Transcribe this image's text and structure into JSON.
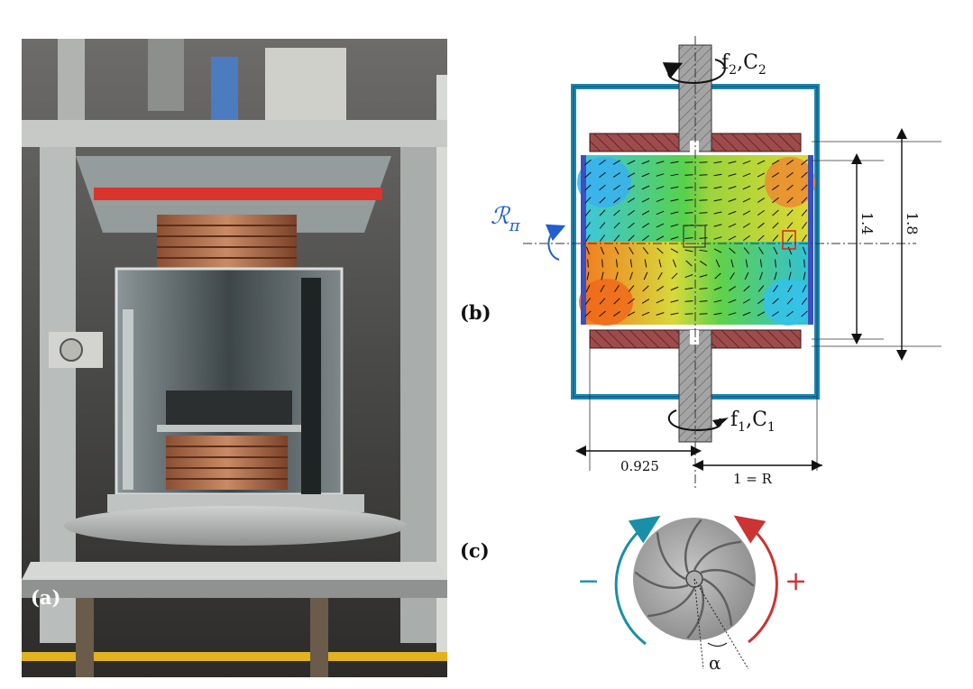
{
  "panels": {
    "a": "(a)",
    "b": "(b)",
    "c": "(c)"
  },
  "diagram_b": {
    "top_rotation": "f",
    "top_rotation_sub": "2",
    "top_rotation_mid": ",C",
    "top_rotation_sub2": "2",
    "bottom_rotation": "f",
    "bottom_rotation_sub": "1",
    "bottom_rotation_mid": ",C",
    "bottom_rotation_sub2": "1",
    "symmetry_symbol": "ℛ",
    "symmetry_sub": "π",
    "dim_radius_impeller": "0.925",
    "dim_radius": "1 = R",
    "dim_height_inner": "1.4",
    "dim_height_outer": "1.8"
  },
  "diagram_c": {
    "minus": "−",
    "plus": "+",
    "angle": "α"
  },
  "colors": {
    "vessel_frame": "#1c86b0",
    "impeller_disk": "#9b4a4a",
    "shaft": "#9a9a9a",
    "arrow_minus": "#1a8fa8",
    "arrow_plus": "#cc3333",
    "symmetry_axis": "#1f5fd0"
  }
}
